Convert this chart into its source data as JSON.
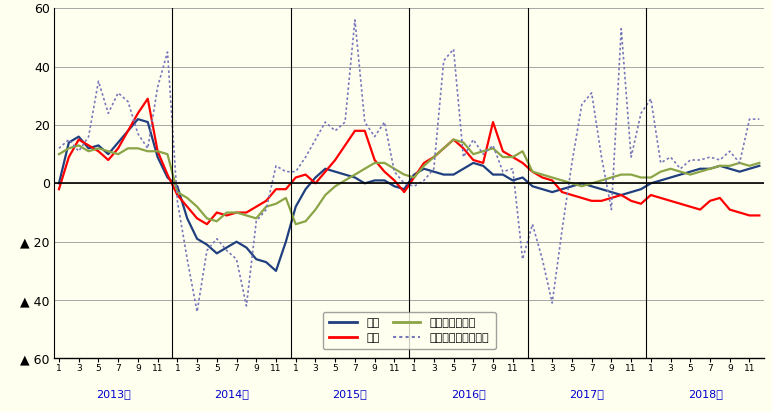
{
  "background_color": "#FFFFF0",
  "ylim": [
    -60,
    60
  ],
  "years": [
    "2013年",
    "2014年",
    "2015年",
    "2016年",
    "2017年",
    "2018年"
  ],
  "series": {
    "持家": {
      "color": "#1F3F7F",
      "linewidth": 1.6,
      "linestyle": "solid",
      "data": [
        0,
        14,
        16,
        12,
        13,
        10,
        14,
        18,
        22,
        21,
        9,
        2,
        -1,
        -12,
        -19,
        -21,
        -24,
        -22,
        -20,
        -22,
        -26,
        -27,
        -30,
        -20,
        -8,
        -2,
        2,
        5,
        4,
        3,
        2,
        0,
        1,
        1,
        -1,
        -2,
        3,
        5,
        4,
        3,
        3,
        5,
        7,
        6,
        3,
        3,
        1,
        2,
        -1,
        -2,
        -3,
        -2,
        -1,
        0,
        -1,
        -2,
        -3,
        -4,
        -3,
        -2,
        0,
        1,
        2,
        3,
        4,
        5,
        5,
        6,
        5,
        4,
        5,
        6
      ]
    },
    "賃家": {
      "color": "#FF0000",
      "linewidth": 1.6,
      "linestyle": "solid",
      "data": [
        -2,
        9,
        15,
        13,
        11,
        8,
        12,
        18,
        24,
        29,
        11,
        3,
        -4,
        -8,
        -12,
        -14,
        -10,
        -11,
        -10,
        -10,
        -8,
        -6,
        -2,
        -2,
        2,
        3,
        0,
        4,
        8,
        13,
        18,
        18,
        8,
        4,
        1,
        -3,
        2,
        7,
        9,
        12,
        15,
        12,
        8,
        7,
        21,
        11,
        9,
        7,
        4,
        2,
        1,
        -3,
        -4,
        -5,
        -6,
        -6,
        -5,
        -4,
        -6,
        -7,
        -4,
        -5,
        -6,
        -7,
        -8,
        -9,
        -6,
        -5,
        -9,
        -10,
        -11,
        -11
      ]
    },
    "分譲（一戸建）": {
      "color": "#8BA446",
      "linewidth": 1.6,
      "linestyle": "solid",
      "data": [
        10,
        12,
        13,
        11,
        12,
        11,
        10,
        12,
        12,
        11,
        11,
        10,
        -3,
        -5,
        -8,
        -12,
        -13,
        -10,
        -10,
        -11,
        -12,
        -8,
        -7,
        -5,
        -14,
        -13,
        -9,
        -4,
        -1,
        1,
        3,
        5,
        7,
        7,
        5,
        3,
        2,
        6,
        9,
        12,
        15,
        14,
        10,
        11,
        12,
        9,
        9,
        11,
        4,
        3,
        2,
        1,
        0,
        -1,
        0,
        1,
        2,
        3,
        3,
        2,
        2,
        4,
        5,
        4,
        3,
        4,
        5,
        6,
        6,
        7,
        6,
        7
      ]
    },
    "分譲（マンション）": {
      "color": "#7777BB",
      "linewidth": 1.2,
      "linestyle": "dotted",
      "data": [
        12,
        15,
        11,
        16,
        35,
        24,
        31,
        28,
        17,
        12,
        33,
        45,
        -6,
        -26,
        -44,
        -23,
        -19,
        -23,
        -26,
        -42,
        -13,
        -9,
        6,
        4,
        4,
        9,
        15,
        21,
        18,
        21,
        56,
        21,
        16,
        21,
        4,
        0,
        -1,
        1,
        5,
        42,
        46,
        9,
        15,
        10,
        13,
        4,
        5,
        -26,
        -14,
        -26,
        -41,
        -16,
        7,
        27,
        31,
        9,
        -9,
        53,
        9,
        24,
        29,
        7,
        9,
        5,
        8,
        8,
        9,
        8,
        11,
        7,
        22,
        22
      ]
    }
  },
  "legend_entries": [
    {
      "label": "持家",
      "color": "#1F3F7F",
      "linestyle": "solid"
    },
    {
      "label": "賃家",
      "color": "#FF0000",
      "linestyle": "solid"
    },
    {
      "label": "分譲（一戸建）",
      "color": "#8BA446",
      "linestyle": "solid"
    },
    {
      "label": "分譲（マンション）",
      "color": "#7777BB",
      "linestyle": "dotted"
    }
  ]
}
